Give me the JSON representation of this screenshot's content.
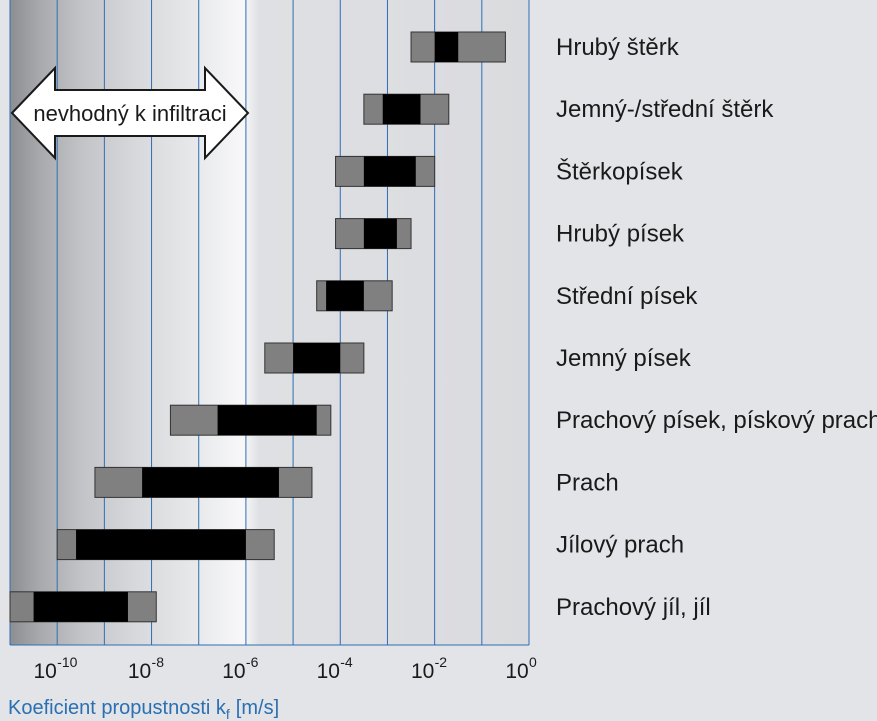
{
  "chart_data": {
    "type": "range-bar",
    "x_scale": "log10",
    "xlim_exponents": [
      -11,
      0
    ],
    "xlabel": "Koeficient propustnosti k",
    "xlabel_subscript": "f",
    "xlabel_unit": "[m/s]",
    "tick_base": "10",
    "ticks": [
      {
        "exp": -10,
        "label": "-10"
      },
      {
        "exp": -8,
        "label": "-8"
      },
      {
        "exp": -6,
        "label": "-6"
      },
      {
        "exp": -4,
        "label": "-4"
      },
      {
        "exp": -2,
        "label": "-2"
      },
      {
        "exp": 0,
        "label": "0"
      }
    ],
    "grid": true,
    "annotation": {
      "text": "nevhodný k infiltraci",
      "x_range_exponents": [
        -11,
        -6
      ]
    },
    "colors": {
      "full_range": "#808080",
      "typical_range": "#000000",
      "grid": "#2f6db5"
    },
    "categories": [
      {
        "label": "Hrubý štěrk",
        "full_range_exponents": [
          -2.5,
          -0.5
        ],
        "typical_range_exponents": [
          -2.0,
          -1.5
        ]
      },
      {
        "label": "Jemný-/střední štěrk",
        "full_range_exponents": [
          -3.5,
          -1.7
        ],
        "typical_range_exponents": [
          -3.1,
          -2.3
        ]
      },
      {
        "label": "Štěrkopísek",
        "full_range_exponents": [
          -4.1,
          -2.0
        ],
        "typical_range_exponents": [
          -3.5,
          -2.4
        ]
      },
      {
        "label": "Hrubý písek",
        "full_range_exponents": [
          -4.1,
          -2.5
        ],
        "typical_range_exponents": [
          -3.5,
          -2.8
        ]
      },
      {
        "label": "Střední písek",
        "full_range_exponents": [
          -4.5,
          -2.9
        ],
        "typical_range_exponents": [
          -4.3,
          -3.5
        ]
      },
      {
        "label": "Jemný písek",
        "full_range_exponents": [
          -5.6,
          -3.5
        ],
        "typical_range_exponents": [
          -5.0,
          -4.0
        ]
      },
      {
        "label": "Prachový písek, pískový prach",
        "full_range_exponents": [
          -7.6,
          -4.2
        ],
        "typical_range_exponents": [
          -6.6,
          -4.5
        ]
      },
      {
        "label": "Prach",
        "full_range_exponents": [
          -9.2,
          -4.6
        ],
        "typical_range_exponents": [
          -8.2,
          -5.3
        ]
      },
      {
        "label": "Jílový prach",
        "full_range_exponents": [
          -10.0,
          -5.4
        ],
        "typical_range_exponents": [
          -9.6,
          -6.0
        ]
      },
      {
        "label": "Prachový jíl, jíl",
        "full_range_exponents": [
          -11.0,
          -7.9
        ],
        "typical_range_exponents": [
          -10.5,
          -8.5
        ]
      }
    ]
  }
}
